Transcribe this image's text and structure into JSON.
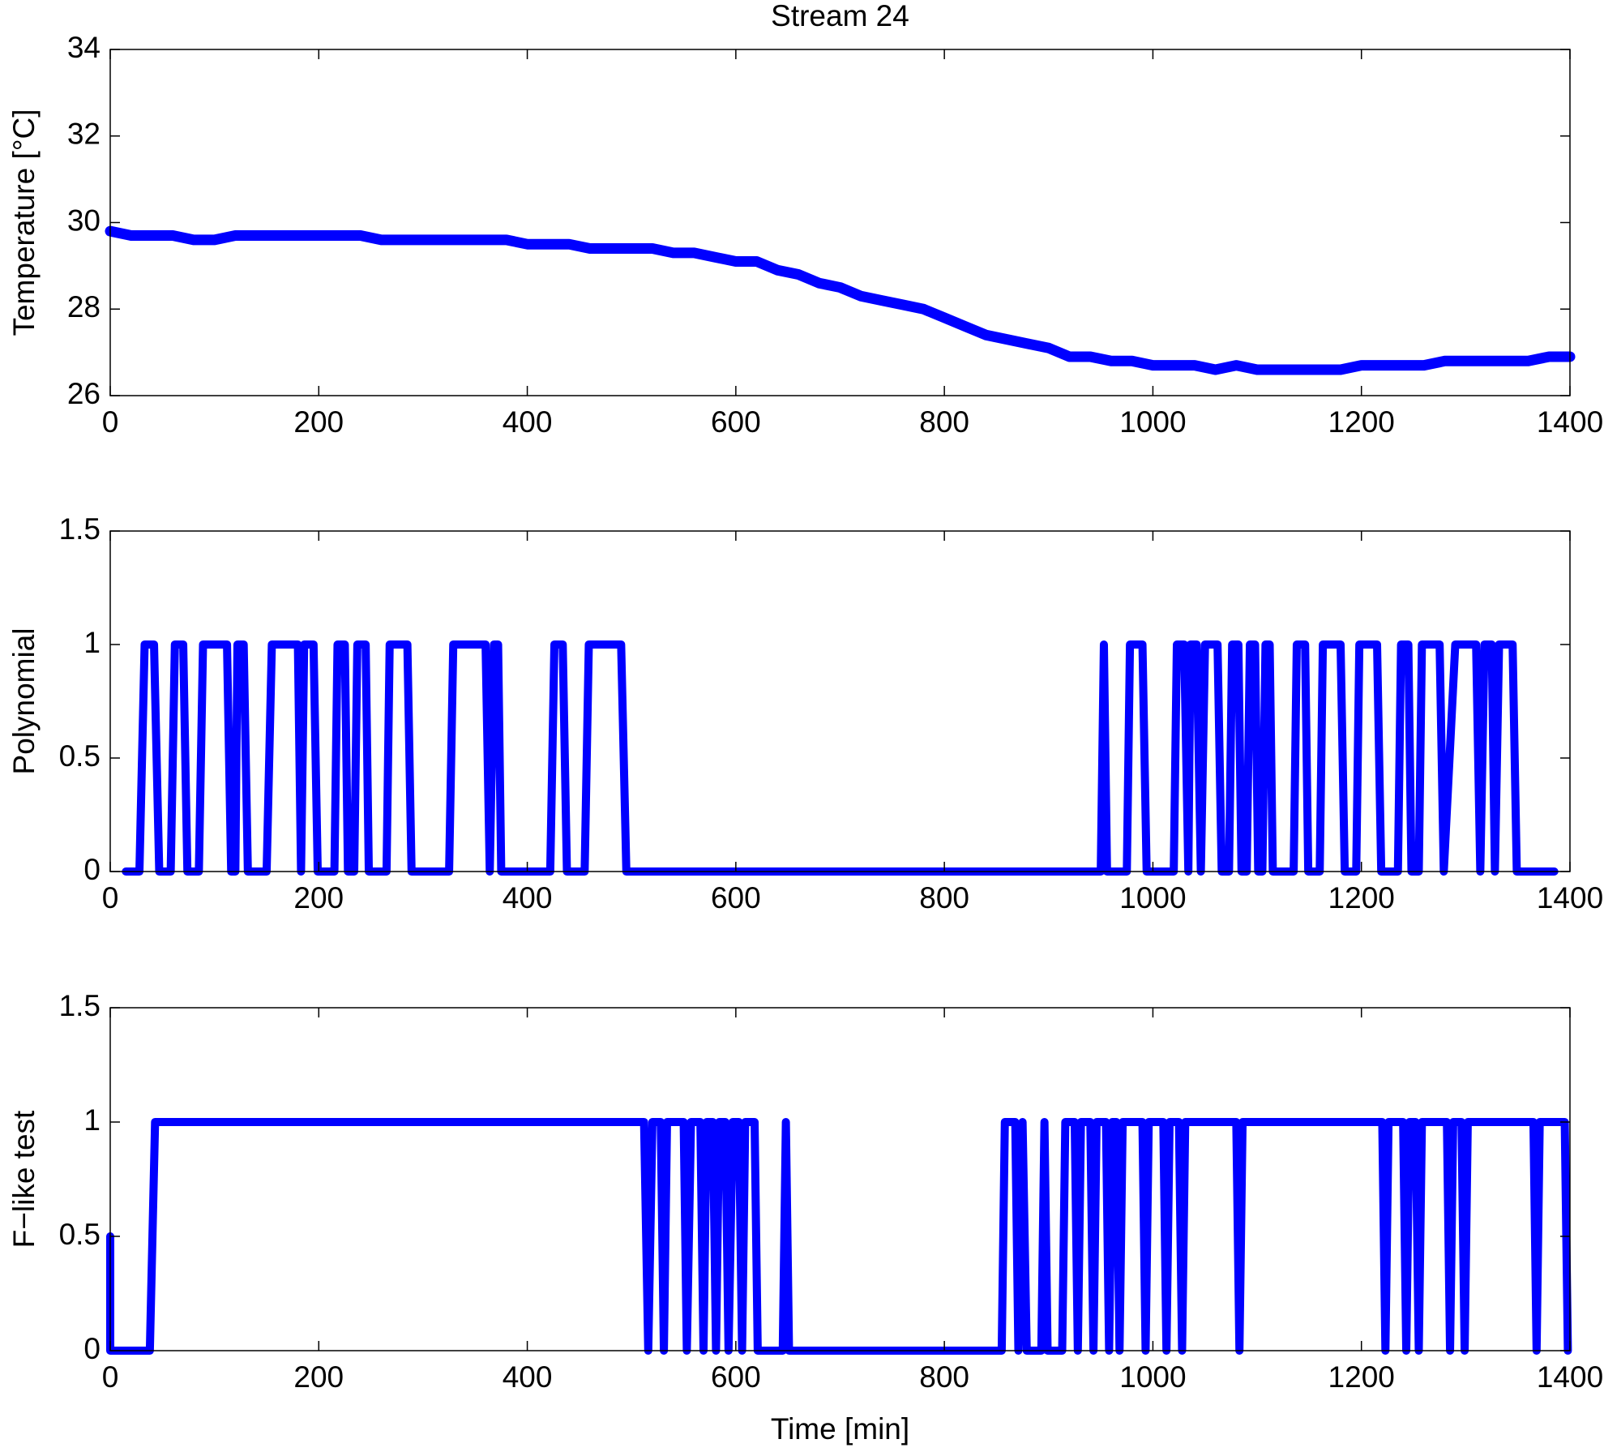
{
  "chart_data": [
    {
      "type": "line",
      "title": "Stream 24",
      "ylabel": "Temperature [°C]",
      "color": "#0000ff",
      "xlim": [
        0,
        1400
      ],
      "xticks": [
        0,
        200,
        400,
        600,
        800,
        1000,
        1200,
        1400
      ],
      "ylim": [
        26,
        34
      ],
      "yticks": [
        26,
        28,
        30,
        32,
        34
      ],
      "x": [
        0,
        20,
        40,
        60,
        80,
        100,
        120,
        140,
        160,
        180,
        200,
        220,
        240,
        260,
        280,
        300,
        320,
        340,
        360,
        380,
        400,
        420,
        440,
        460,
        480,
        500,
        520,
        540,
        560,
        580,
        600,
        620,
        640,
        660,
        680,
        700,
        720,
        740,
        760,
        780,
        800,
        820,
        840,
        860,
        880,
        900,
        920,
        940,
        960,
        980,
        1000,
        1020,
        1040,
        1060,
        1080,
        1100,
        1120,
        1140,
        1160,
        1180,
        1200,
        1220,
        1240,
        1260,
        1280,
        1300,
        1320,
        1340,
        1360,
        1380,
        1400
      ],
      "values": [
        29.8,
        29.7,
        29.7,
        29.7,
        29.6,
        29.6,
        29.7,
        29.7,
        29.7,
        29.7,
        29.7,
        29.7,
        29.7,
        29.6,
        29.6,
        29.6,
        29.6,
        29.6,
        29.6,
        29.6,
        29.5,
        29.5,
        29.5,
        29.4,
        29.4,
        29.4,
        29.4,
        29.3,
        29.3,
        29.2,
        29.1,
        29.1,
        28.9,
        28.8,
        28.6,
        28.5,
        28.3,
        28.2,
        28.1,
        28.0,
        27.8,
        27.6,
        27.4,
        27.3,
        27.2,
        27.1,
        26.9,
        26.9,
        26.8,
        26.8,
        26.7,
        26.7,
        26.7,
        26.6,
        26.7,
        26.6,
        26.6,
        26.6,
        26.6,
        26.6,
        26.7,
        26.7,
        26.7,
        26.7,
        26.8,
        26.8,
        26.8,
        26.8,
        26.8,
        26.9,
        26.9
      ]
    },
    {
      "type": "line",
      "ylabel": "Polynomial",
      "color": "#0000ff",
      "xlim": [
        0,
        1400
      ],
      "xticks": [
        0,
        200,
        400,
        600,
        800,
        1000,
        1200,
        1400
      ],
      "ylim": [
        0,
        1.5
      ],
      "yticks": [
        0,
        0.5,
        1,
        1.5
      ],
      "x": [
        15,
        28,
        33,
        42,
        47,
        58,
        62,
        70,
        74,
        85,
        89,
        112,
        116,
        120,
        122,
        128,
        132,
        150,
        155,
        180,
        183,
        186,
        195,
        199,
        215,
        218,
        225,
        228,
        234,
        237,
        245,
        248,
        265,
        268,
        285,
        289,
        325,
        329,
        360,
        364,
        368,
        372,
        375,
        422,
        426,
        434,
        438,
        455,
        459,
        490,
        495,
        950,
        953,
        956,
        975,
        978,
        990,
        994,
        1020,
        1023,
        1030,
        1034,
        1036,
        1042,
        1046,
        1050,
        1062,
        1066,
        1073,
        1076,
        1082,
        1085,
        1090,
        1093,
        1098,
        1101,
        1105,
        1108,
        1112,
        1115,
        1135,
        1138,
        1146,
        1149,
        1160,
        1163,
        1180,
        1184,
        1195,
        1198,
        1215,
        1219,
        1235,
        1238,
        1245,
        1248,
        1255,
        1258,
        1275,
        1279,
        1290,
        1310,
        1314,
        1318,
        1325,
        1328,
        1332,
        1345,
        1349,
        1385
      ],
      "values": [
        0,
        0,
        1,
        1,
        0,
        0,
        1,
        1,
        0,
        0,
        1,
        1,
        0,
        0,
        1,
        1,
        0,
        0,
        1,
        1,
        0,
        1,
        1,
        0,
        0,
        1,
        1,
        0,
        0,
        1,
        1,
        0,
        0,
        1,
        1,
        0,
        0,
        1,
        1,
        0,
        1,
        1,
        0,
        0,
        1,
        1,
        0,
        0,
        1,
        1,
        0,
        0,
        1,
        0,
        0,
        1,
        1,
        0,
        0,
        1,
        1,
        0,
        1,
        1,
        0,
        1,
        1,
        0,
        0,
        1,
        1,
        0,
        0,
        1,
        1,
        0,
        0,
        1,
        1,
        0,
        0,
        1,
        1,
        0,
        0,
        1,
        1,
        0,
        0,
        1,
        1,
        0,
        0,
        1,
        1,
        0,
        0,
        1,
        1,
        0,
        1,
        1,
        0,
        1,
        1,
        0,
        1,
        1,
        0,
        0
      ]
    },
    {
      "type": "line",
      "ylabel": "F−like test",
      "xlabel": "Time [min]",
      "color": "#0000ff",
      "xlim": [
        0,
        1400
      ],
      "xticks": [
        0,
        200,
        400,
        600,
        800,
        1000,
        1200,
        1400
      ],
      "ylim": [
        0,
        1.5
      ],
      "yticks": [
        0,
        0.5,
        1,
        1.5
      ],
      "x": [
        0,
        0,
        38,
        43,
        512,
        516,
        520,
        528,
        531,
        534,
        550,
        553,
        557,
        566,
        569,
        572,
        578,
        581,
        584,
        590,
        593,
        597,
        603,
        606,
        609,
        618,
        621,
        645,
        648,
        651,
        855,
        858,
        868,
        871,
        875,
        879,
        893,
        896,
        899,
        913,
        916,
        925,
        928,
        931,
        940,
        943,
        946,
        955,
        958,
        961,
        965,
        968,
        971,
        990,
        993,
        996,
        1010,
        1013,
        1016,
        1025,
        1028,
        1031,
        1080,
        1083,
        1086,
        1220,
        1223,
        1226,
        1240,
        1243,
        1246,
        1252,
        1255,
        1258,
        1282,
        1285,
        1288,
        1296,
        1299,
        1302,
        1365,
        1368,
        1371,
        1395,
        1398
      ],
      "values": [
        0.5,
        0,
        0,
        1,
        1,
        0,
        1,
        1,
        0,
        1,
        1,
        0,
        1,
        1,
        0,
        1,
        1,
        0,
        1,
        1,
        0,
        1,
        1,
        0,
        1,
        1,
        0,
        0,
        1,
        0,
        0,
        1,
        1,
        0,
        1,
        0,
        0,
        1,
        0,
        0,
        1,
        1,
        0,
        1,
        1,
        0,
        1,
        1,
        0,
        1,
        1,
        0,
        1,
        1,
        0,
        1,
        1,
        0,
        1,
        1,
        0,
        1,
        1,
        0,
        1,
        1,
        0,
        1,
        1,
        0,
        1,
        1,
        0,
        1,
        1,
        0,
        1,
        1,
        0,
        1,
        1,
        0,
        1,
        1,
        0
      ]
    }
  ]
}
